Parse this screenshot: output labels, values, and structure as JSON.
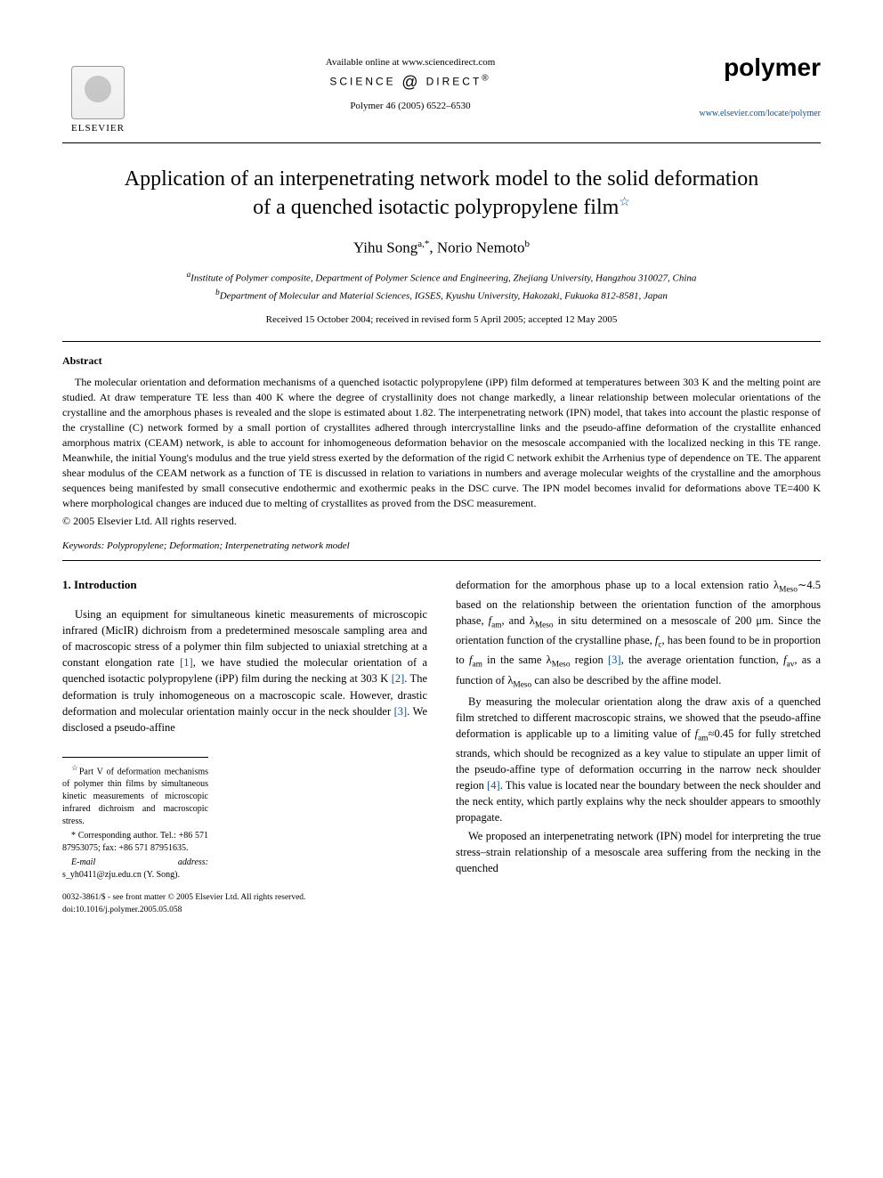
{
  "header": {
    "available_text": "Available online at www.sciencedirect.com",
    "science_direct": "SCIENCE DIRECT®",
    "citation": "Polymer 46 (2005) 6522–6530",
    "publisher_name": "ELSEVIER",
    "journal_name": "polymer",
    "journal_url": "www.elsevier.com/locate/polymer"
  },
  "title_line1": "Application of an interpenetrating network model to the solid deformation",
  "title_line2": "of a quenched isotactic polypropylene film",
  "title_star": "☆",
  "authors": {
    "a1_name": "Yihu Song",
    "a1_sup": "a,*",
    "a2_name": "Norio Nemoto",
    "a2_sup": "b"
  },
  "affiliations": {
    "a": "Institute of Polymer composite, Department of Polymer Science and Engineering, Zhejiang University, Hangzhou 310027, China",
    "b": "Department of Molecular and Material Sciences, IGSES, Kyushu University, Hakozaki, Fukuoka 812-8581, Japan"
  },
  "dates": "Received 15 October 2004; received in revised form 5 April 2005; accepted 12 May 2005",
  "abstract": {
    "heading": "Abstract",
    "body": "The molecular orientation and deformation mechanisms of a quenched isotactic polypropylene (iPP) film deformed at temperatures between 303 K and the melting point are studied. At draw temperature TE less than 400 K where the degree of crystallinity does not change markedly, a linear relationship between molecular orientations of the crystalline and the amorphous phases is revealed and the slope is estimated about 1.82. The interpenetrating network (IPN) model, that takes into account the plastic response of the crystalline (C) network formed by a small portion of crystallites adhered through intercrystalline links and the pseudo-affine deformation of the crystallite enhanced amorphous matrix (CEAM) network, is able to account for inhomogeneous deformation behavior on the mesoscale accompanied with the localized necking in this TE range. Meanwhile, the initial Young's modulus and the true yield stress exerted by the deformation of the rigid C network exhibit the Arrhenius type of dependence on TE. The apparent shear modulus of the CEAM network as a function of TE is discussed in relation to variations in numbers and average molecular weights of the crystalline and the amorphous sequences being manifested by small consecutive endothermic and exothermic peaks in the DSC curve. The IPN model becomes invalid for deformations above TE=400 K where morphological changes are induced due to melting of crystallites as proved from the DSC measurement.",
    "copyright": "© 2005 Elsevier Ltd. All rights reserved."
  },
  "keywords": {
    "label": "Keywords:",
    "text": "Polypropylene; Deformation; Interpenetrating network model"
  },
  "intro": {
    "heading": "1. Introduction",
    "left_p1": "Using an equipment for simultaneous kinetic measurements of microscopic infrared (MicIR) dichroism from a predetermined mesoscale sampling area and of macroscopic stress of a polymer thin film subjected to uniaxial stretching at a constant elongation rate [1], we have studied the molecular orientation of a quenched isotactic polypropylene (iPP) film during the necking at 303 K [2]. The deformation is truly inhomogeneous on a macroscopic scale. However, drastic deformation and molecular orientation mainly occur in the neck shoulder [3]. We disclosed a pseudo-affine",
    "right_p1": "deformation for the amorphous phase up to a local extension ratio λMeso∼4.5 based on the relationship between the orientation function of the amorphous phase, fam, and λMeso in situ determined on a mesoscale of 200 μm. Since the orientation function of the crystalline phase, fc, has been found to be in proportion to fam in the same λMeso region [3], the average orientation function, fav, as a function of λMeso can also be described by the affine model.",
    "right_p2": "By measuring the molecular orientation along the draw axis of a quenched film stretched to different macroscopic strains, we showed that the pseudo-affine deformation is applicable up to a limiting value of fam≈0.45 for fully stretched strands, which should be recognized as a key value to stipulate an upper limit of the pseudo-affine type of deformation occurring in the narrow neck shoulder region [4]. This value is located near the boundary between the neck shoulder and the neck entity, which partly explains why the neck shoulder appears to smoothly propagate.",
    "right_p3": "We proposed an interpenetrating network (IPN) model for interpreting the true stress–strain relationship of a mesoscale area suffering from the necking in the quenched"
  },
  "footnotes": {
    "star": "Part V of deformation mechanisms of polymer thin films by simultaneous kinetic measurements of microscopic infrared dichroism and macroscopic stress.",
    "corr_label": "* Corresponding author. Tel.: +86 571 87953075; fax: +86 571 87951635.",
    "email_label": "E-mail address:",
    "email": "s_yh0411@zju.edu.cn (Y. Song)."
  },
  "footer": {
    "issn": "0032-3861/$ - see front matter © 2005 Elsevier Ltd. All rights reserved.",
    "doi": "doi:10.1016/j.polymer.2005.05.058"
  },
  "colors": {
    "link": "#0a52a0",
    "text": "#000000",
    "background": "#ffffff"
  },
  "typography": {
    "body_font": "Times New Roman",
    "title_fontsize_pt": 18,
    "author_fontsize_pt": 13,
    "abstract_fontsize_pt": 9,
    "body_fontsize_pt": 9.5
  }
}
